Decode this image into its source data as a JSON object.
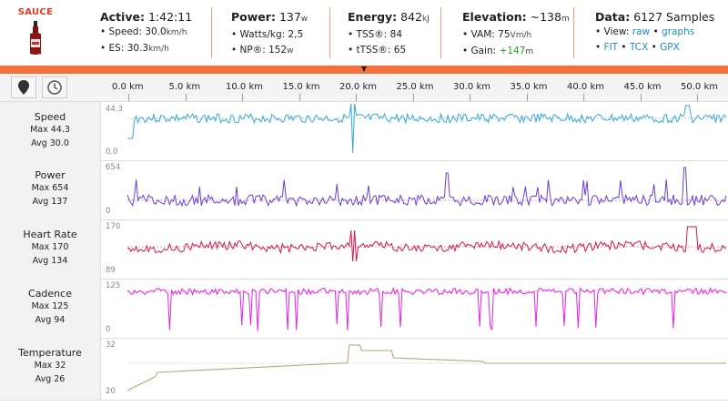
{
  "brand": {
    "name": "SAUCE"
  },
  "summary": {
    "active": {
      "label": "Active:",
      "value": "1:42:11",
      "lines": [
        {
          "label": "Speed:",
          "value": "30.0",
          "unit": "km/h"
        },
        {
          "label": "ES:",
          "value": "30.3",
          "unit": "km/h"
        }
      ]
    },
    "power": {
      "label": "Power:",
      "value": "137",
      "unit": "w",
      "lines": [
        {
          "label": "Watts/kg:",
          "value": "2,5",
          "unit": ""
        },
        {
          "label": "NP®:",
          "value": "152",
          "unit": "w"
        }
      ]
    },
    "energy": {
      "label": "Energy:",
      "value": "842",
      "unit": "kJ",
      "lines": [
        {
          "label": "TSS®:",
          "value": "84",
          "unit": ""
        },
        {
          "label": "tTSS®:",
          "value": "65",
          "unit": ""
        }
      ]
    },
    "elevation": {
      "label": "Elevation:",
      "value": "~138",
      "unit": "m",
      "lines": [
        {
          "label": "VAM:",
          "value": "75",
          "unit": "Vm/h"
        },
        {
          "label": "Gain:",
          "value": "+147",
          "unit": "m"
        }
      ]
    },
    "data": {
      "label": "Data:",
      "value": "6127 Samples",
      "view_label": "View:",
      "view_raw": "raw",
      "view_graphs": "graphs",
      "exports": [
        "FIT",
        "TCX",
        "GPX"
      ]
    }
  },
  "axis": {
    "ticks": [
      "0.0 km",
      "5.0 km",
      "10.0 km",
      "15.0 km",
      "20.0 km",
      "25.0 km",
      "30.0 km",
      "35.0 km",
      "40.0 km",
      "45.0 km",
      "50.0 km"
    ],
    "max_km": 51.5
  },
  "charts": [
    {
      "name": "Speed",
      "max": "Max 44.3",
      "avg": "Avg 30.0",
      "ymax": "44.3",
      "ymin": "0.0",
      "color": "#3aa7d8"
    },
    {
      "name": "Power",
      "max": "Max 654",
      "avg": "Avg 137",
      "ymax": "654",
      "ymin": "0",
      "color": "#6b3fcf"
    },
    {
      "name": "Heart Rate",
      "max": "Max 170",
      "avg": "Avg 134",
      "ymax": "170",
      "ymin": "89",
      "color": "#d21a4f"
    },
    {
      "name": "Cadence",
      "max": "Max 125",
      "avg": "Avg 94",
      "ymax": "125",
      "ymin": "0",
      "color": "#e225e0"
    },
    {
      "name": "Temperature",
      "max": "Max 32",
      "avg": "Avg 26",
      "ymax": "32",
      "ymin": "20",
      "color": "#b0a070"
    }
  ]
}
